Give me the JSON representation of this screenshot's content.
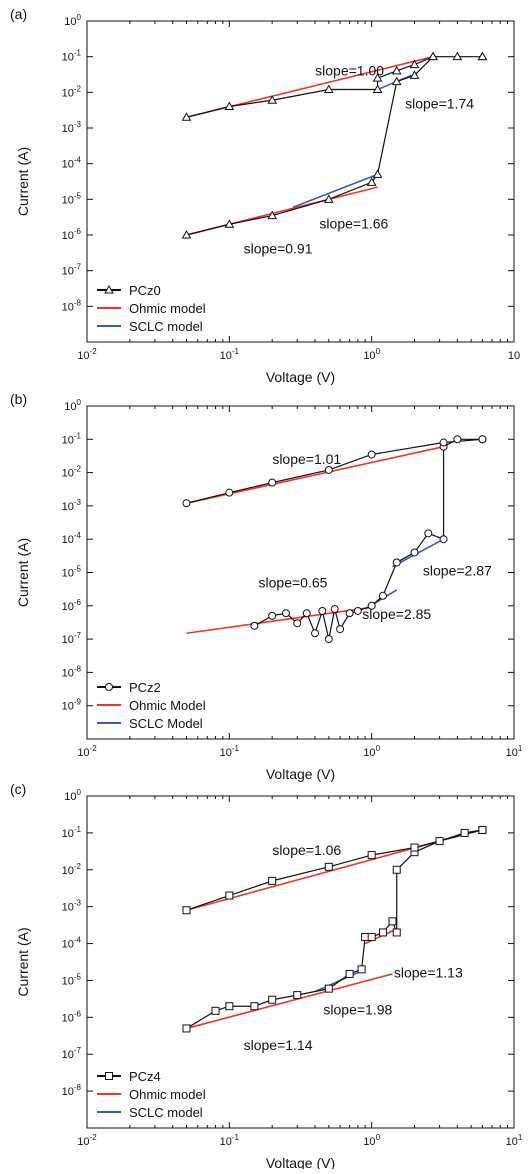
{
  "chart_data": [
    {
      "type": "line",
      "panel_label": "(a)",
      "xlabel": "Voltage (V)",
      "ylabel": "Current (A)",
      "xscale": "log",
      "yscale": "log",
      "xlim": [
        0.01,
        10
      ],
      "ylim": [
        1e-09,
        1
      ],
      "x_tick_labels": [
        "10-2",
        "10-1",
        "100",
        "10"
      ],
      "y_tick_labels": [
        "100",
        "10-1",
        "10-2",
        "10-3",
        "10-4",
        "10-5",
        "10-6",
        "10-7",
        "10-8"
      ],
      "legend_position": "bottom-left",
      "legend": [
        {
          "name": "PCz0",
          "marker": "triangle",
          "color": "#111111"
        },
        {
          "name": "Ohmic model",
          "marker": "none",
          "color": "#e8352e"
        },
        {
          "name": "SCLC model",
          "marker": "none",
          "color": "#3b5bb5"
        }
      ],
      "series": [
        {
          "name": "PCz0",
          "role": "data",
          "marker": "triangle",
          "x": [
            0.05,
            0.1,
            0.2,
            0.5,
            1.0,
            1.1,
            1.5,
            2.0,
            2.7,
            4.0,
            6.0,
            6.0,
            2.7,
            2.0,
            1.5,
            1.1,
            1.1,
            0.5,
            0.2,
            0.1,
            0.05
          ],
          "y": [
            1e-06,
            2e-06,
            3.5e-06,
            1e-05,
            3e-05,
            5e-05,
            0.02,
            0.03,
            0.1,
            0.1,
            0.1,
            0.1,
            0.1,
            0.06,
            0.04,
            0.025,
            0.012,
            0.012,
            0.006,
            0.004,
            0.002
          ]
        },
        {
          "name": "Ohmic model",
          "role": "fit",
          "x": [
            0.05,
            1.1
          ],
          "y": [
            1e-06,
            2.2e-05
          ]
        },
        {
          "name": "Ohmic model",
          "role": "fit",
          "x": [
            0.05,
            2.7
          ],
          "y": [
            0.002,
            0.1
          ]
        },
        {
          "name": "SCLC model",
          "role": "fit",
          "x": [
            0.28,
            1.1
          ],
          "y": [
            6e-06,
            5e-05
          ]
        },
        {
          "name": "SCLC model",
          "role": "fit",
          "x": [
            1.1,
            1.9
          ],
          "y": [
            0.012,
            0.03
          ]
        }
      ],
      "annotations": [
        {
          "text": "slope=1.00",
          "x": 0.7,
          "y": 0.03
        },
        {
          "text": "slope=1.74",
          "x": 3.0,
          "y": 0.0035
        },
        {
          "text": "slope=1.66",
          "x": 0.75,
          "y": 1.5e-06
        },
        {
          "text": "slope=0.91",
          "x": 0.22,
          "y": 3e-07
        }
      ]
    },
    {
      "type": "line",
      "panel_label": "(b)",
      "xlabel": "Voltage (V)",
      "ylabel": "Current (A)",
      "xscale": "log",
      "yscale": "log",
      "xlim": [
        0.01,
        10
      ],
      "ylim": [
        1e-10,
        1
      ],
      "x_tick_labels": [
        "10-2",
        "10-1",
        "100",
        "101"
      ],
      "y_tick_labels": [
        "100",
        "10-1",
        "10-2",
        "10-3",
        "10-4",
        "10-5",
        "10-6",
        "10-7",
        "10-8",
        "10-9"
      ],
      "legend_position": "bottom-left",
      "legend": [
        {
          "name": "PCz2",
          "marker": "circle",
          "color": "#111111"
        },
        {
          "name": "Ohmic Model",
          "marker": "none",
          "color": "#e8352e"
        },
        {
          "name": "SCLC Model",
          "marker": "none",
          "color": "#3b5bb5"
        }
      ],
      "series": [
        {
          "name": "PCz2",
          "role": "data",
          "marker": "circle",
          "x": [
            0.15,
            0.2,
            0.25,
            0.3,
            0.35,
            0.4,
            0.45,
            0.5,
            0.55,
            0.6,
            0.7,
            0.8,
            1.0,
            1.2,
            1.5,
            2.0,
            2.5,
            3.2,
            3.2,
            4.0,
            6.0,
            6.0,
            3.2,
            1.0,
            0.5,
            0.2,
            0.1,
            0.05
          ],
          "y": [
            2.5e-07,
            5e-07,
            6e-07,
            3e-07,
            6e-07,
            1.5e-07,
            7e-07,
            1e-07,
            8e-07,
            2e-07,
            6e-07,
            7e-07,
            1e-06,
            2e-06,
            2e-05,
            4e-05,
            0.00015,
            0.0001,
            0.06,
            0.1,
            0.1,
            0.1,
            0.08,
            0.035,
            0.012,
            0.005,
            0.0025,
            0.0012
          ]
        },
        {
          "name": "Ohmic Model",
          "role": "fit",
          "x": [
            0.05,
            1.0
          ],
          "y": [
            1.5e-07,
            9e-07
          ]
        },
        {
          "name": "Ohmic Model",
          "role": "fit",
          "x": [
            0.05,
            3.2
          ],
          "y": [
            0.0012,
            0.06
          ]
        },
        {
          "name": "SCLC Model",
          "role": "fit",
          "x": [
            0.9,
            1.5
          ],
          "y": [
            8e-07,
            3e-06
          ]
        },
        {
          "name": "SCLC Model",
          "role": "fit",
          "x": [
            1.4,
            3.2
          ],
          "y": [
            1.5e-05,
            0.0001
          ]
        }
      ],
      "annotations": [
        {
          "text": "slope=1.01",
          "x": 0.35,
          "y": 0.018
        },
        {
          "text": "slope=0.65",
          "x": 0.28,
          "y": 3.5e-06
        },
        {
          "text": "slope=2.87",
          "x": 4.0,
          "y": 8e-06
        },
        {
          "text": "slope=2.85",
          "x": 1.5,
          "y": 4e-07
        }
      ]
    },
    {
      "type": "line",
      "panel_label": "(c)",
      "xlabel": "Voltage (V)",
      "ylabel": "Current (A)",
      "xscale": "log",
      "yscale": "log",
      "xlim": [
        0.01,
        10
      ],
      "ylim": [
        1e-09,
        1
      ],
      "x_tick_labels": [
        "10-2",
        "10-1",
        "100",
        "101"
      ],
      "y_tick_labels": [
        "100",
        "10-1",
        "10-2",
        "10-3",
        "10-4",
        "10-5",
        "10-6",
        "10-7",
        "10-8"
      ],
      "legend_position": "bottom-left",
      "legend": [
        {
          "name": "PCz4",
          "marker": "square",
          "color": "#111111"
        },
        {
          "name": "Ohmic model",
          "marker": "none",
          "color": "#e8352e"
        },
        {
          "name": "SCLC model",
          "marker": "none",
          "color": "#3b5bb5"
        }
      ],
      "series": [
        {
          "name": "PCz4",
          "role": "data",
          "marker": "square",
          "x": [
            0.05,
            0.08,
            0.1,
            0.15,
            0.2,
            0.3,
            0.5,
            0.7,
            0.85,
            0.9,
            1.0,
            1.2,
            1.4,
            1.5,
            1.5,
            2.0,
            3.0,
            4.5,
            6.0,
            6.0,
            2.0,
            1.0,
            0.5,
            0.2,
            0.1,
            0.05
          ],
          "y": [
            5e-07,
            1.5e-06,
            2e-06,
            2e-06,
            3e-06,
            4e-06,
            6e-06,
            1.5e-05,
            2e-05,
            0.00015,
            0.00015,
            0.0002,
            0.0004,
            0.0002,
            0.01,
            0.03,
            0.06,
            0.1,
            0.12,
            0.12,
            0.04,
            0.025,
            0.012,
            0.005,
            0.002,
            0.0008
          ]
        },
        {
          "name": "Ohmic model",
          "role": "fit",
          "x": [
            0.05,
            1.4
          ],
          "y": [
            5e-07,
            1.5e-05
          ]
        },
        {
          "name": "Ohmic model",
          "role": "fit",
          "x": [
            0.05,
            3.0
          ],
          "y": [
            0.0008,
            0.06
          ]
        },
        {
          "name": "Ohmic model",
          "role": "fit",
          "x": [
            0.9,
            1.5
          ],
          "y": [
            0.0001,
            0.00025
          ]
        },
        {
          "name": "SCLC model",
          "role": "fit",
          "x": [
            0.4,
            0.85
          ],
          "y": [
            5e-06,
            1.8e-05
          ]
        }
      ],
      "annotations": [
        {
          "text": "slope=1.06",
          "x": 0.35,
          "y": 0.025
        },
        {
          "text": "slope=1.13",
          "x": 2.5,
          "y": 1.2e-05
        },
        {
          "text": "slope=1.98",
          "x": 0.8,
          "y": 1.2e-06
        },
        {
          "text": "slope=1.14",
          "x": 0.22,
          "y": 1.3e-07
        }
      ]
    }
  ]
}
